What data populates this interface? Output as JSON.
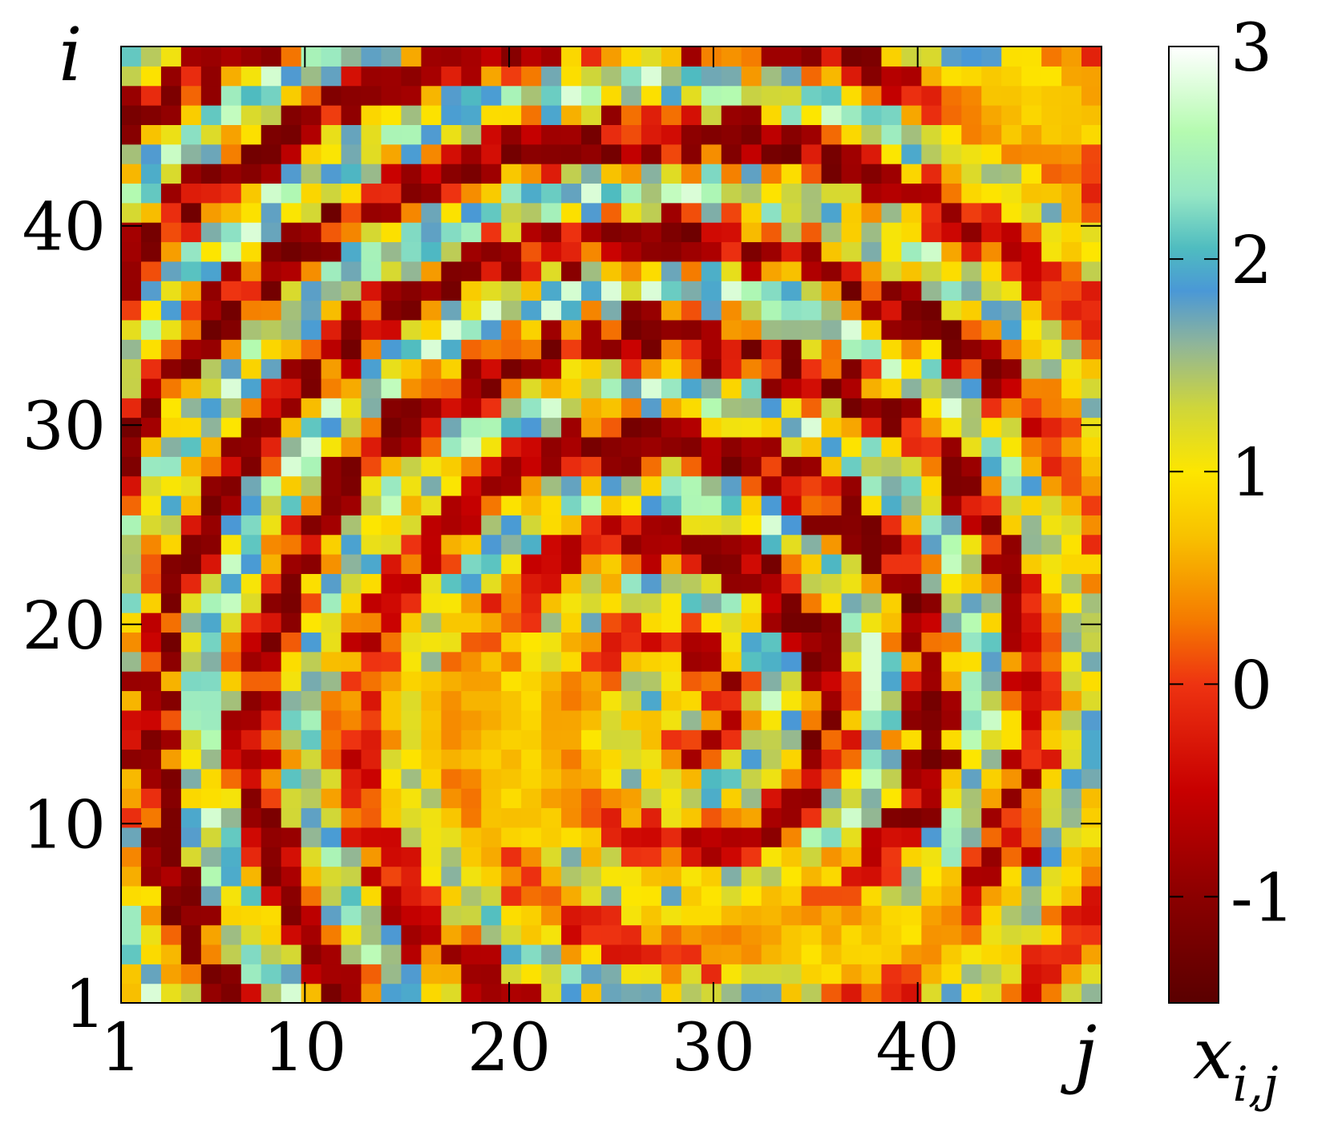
{
  "chart_data": {
    "type": "heatmap",
    "title": "",
    "xlabel": "j",
    "ylabel": "i",
    "colorbar_label": "x_{i,j}",
    "colorbar_label_main": "x",
    "colorbar_label_sub": "i,j",
    "x_range": [
      1,
      49
    ],
    "y_range": [
      1,
      49
    ],
    "x_ticks": [
      1,
      10,
      20,
      30,
      40
    ],
    "y_ticks": [
      1,
      10,
      20,
      30,
      40
    ],
    "x_tick_labels": [
      "1",
      "10",
      "20",
      "30",
      "40"
    ],
    "y_tick_labels": [
      "1",
      "10",
      "20",
      "30",
      "40"
    ],
    "color_range": [
      -1.5,
      3
    ],
    "color_ticks": [
      -1,
      0,
      1,
      2,
      3
    ],
    "color_tick_labels": [
      "-1",
      "0",
      "1",
      "2",
      "3"
    ],
    "colorscale": [
      {
        "value": -1.5,
        "color": "#5a0000"
      },
      {
        "value": -1.0,
        "color": "#8b0000"
      },
      {
        "value": -0.5,
        "color": "#c80000"
      },
      {
        "value": 0.0,
        "color": "#ee3311"
      },
      {
        "value": 0.3,
        "color": "#f57a00"
      },
      {
        "value": 0.7,
        "color": "#f8c200"
      },
      {
        "value": 1.0,
        "color": "#fde600"
      },
      {
        "value": 1.3,
        "color": "#cfd63a"
      },
      {
        "value": 1.6,
        "color": "#8fb59a"
      },
      {
        "value": 1.85,
        "color": "#4a98d6"
      },
      {
        "value": 2.05,
        "color": "#4fbcc0"
      },
      {
        "value": 2.3,
        "color": "#95e6c4"
      },
      {
        "value": 2.6,
        "color": "#b5fbb0"
      },
      {
        "value": 3.0,
        "color": "#ffffff"
      }
    ],
    "pattern": "spiral wave",
    "grid": false,
    "rows": 49,
    "cols": 49
  }
}
